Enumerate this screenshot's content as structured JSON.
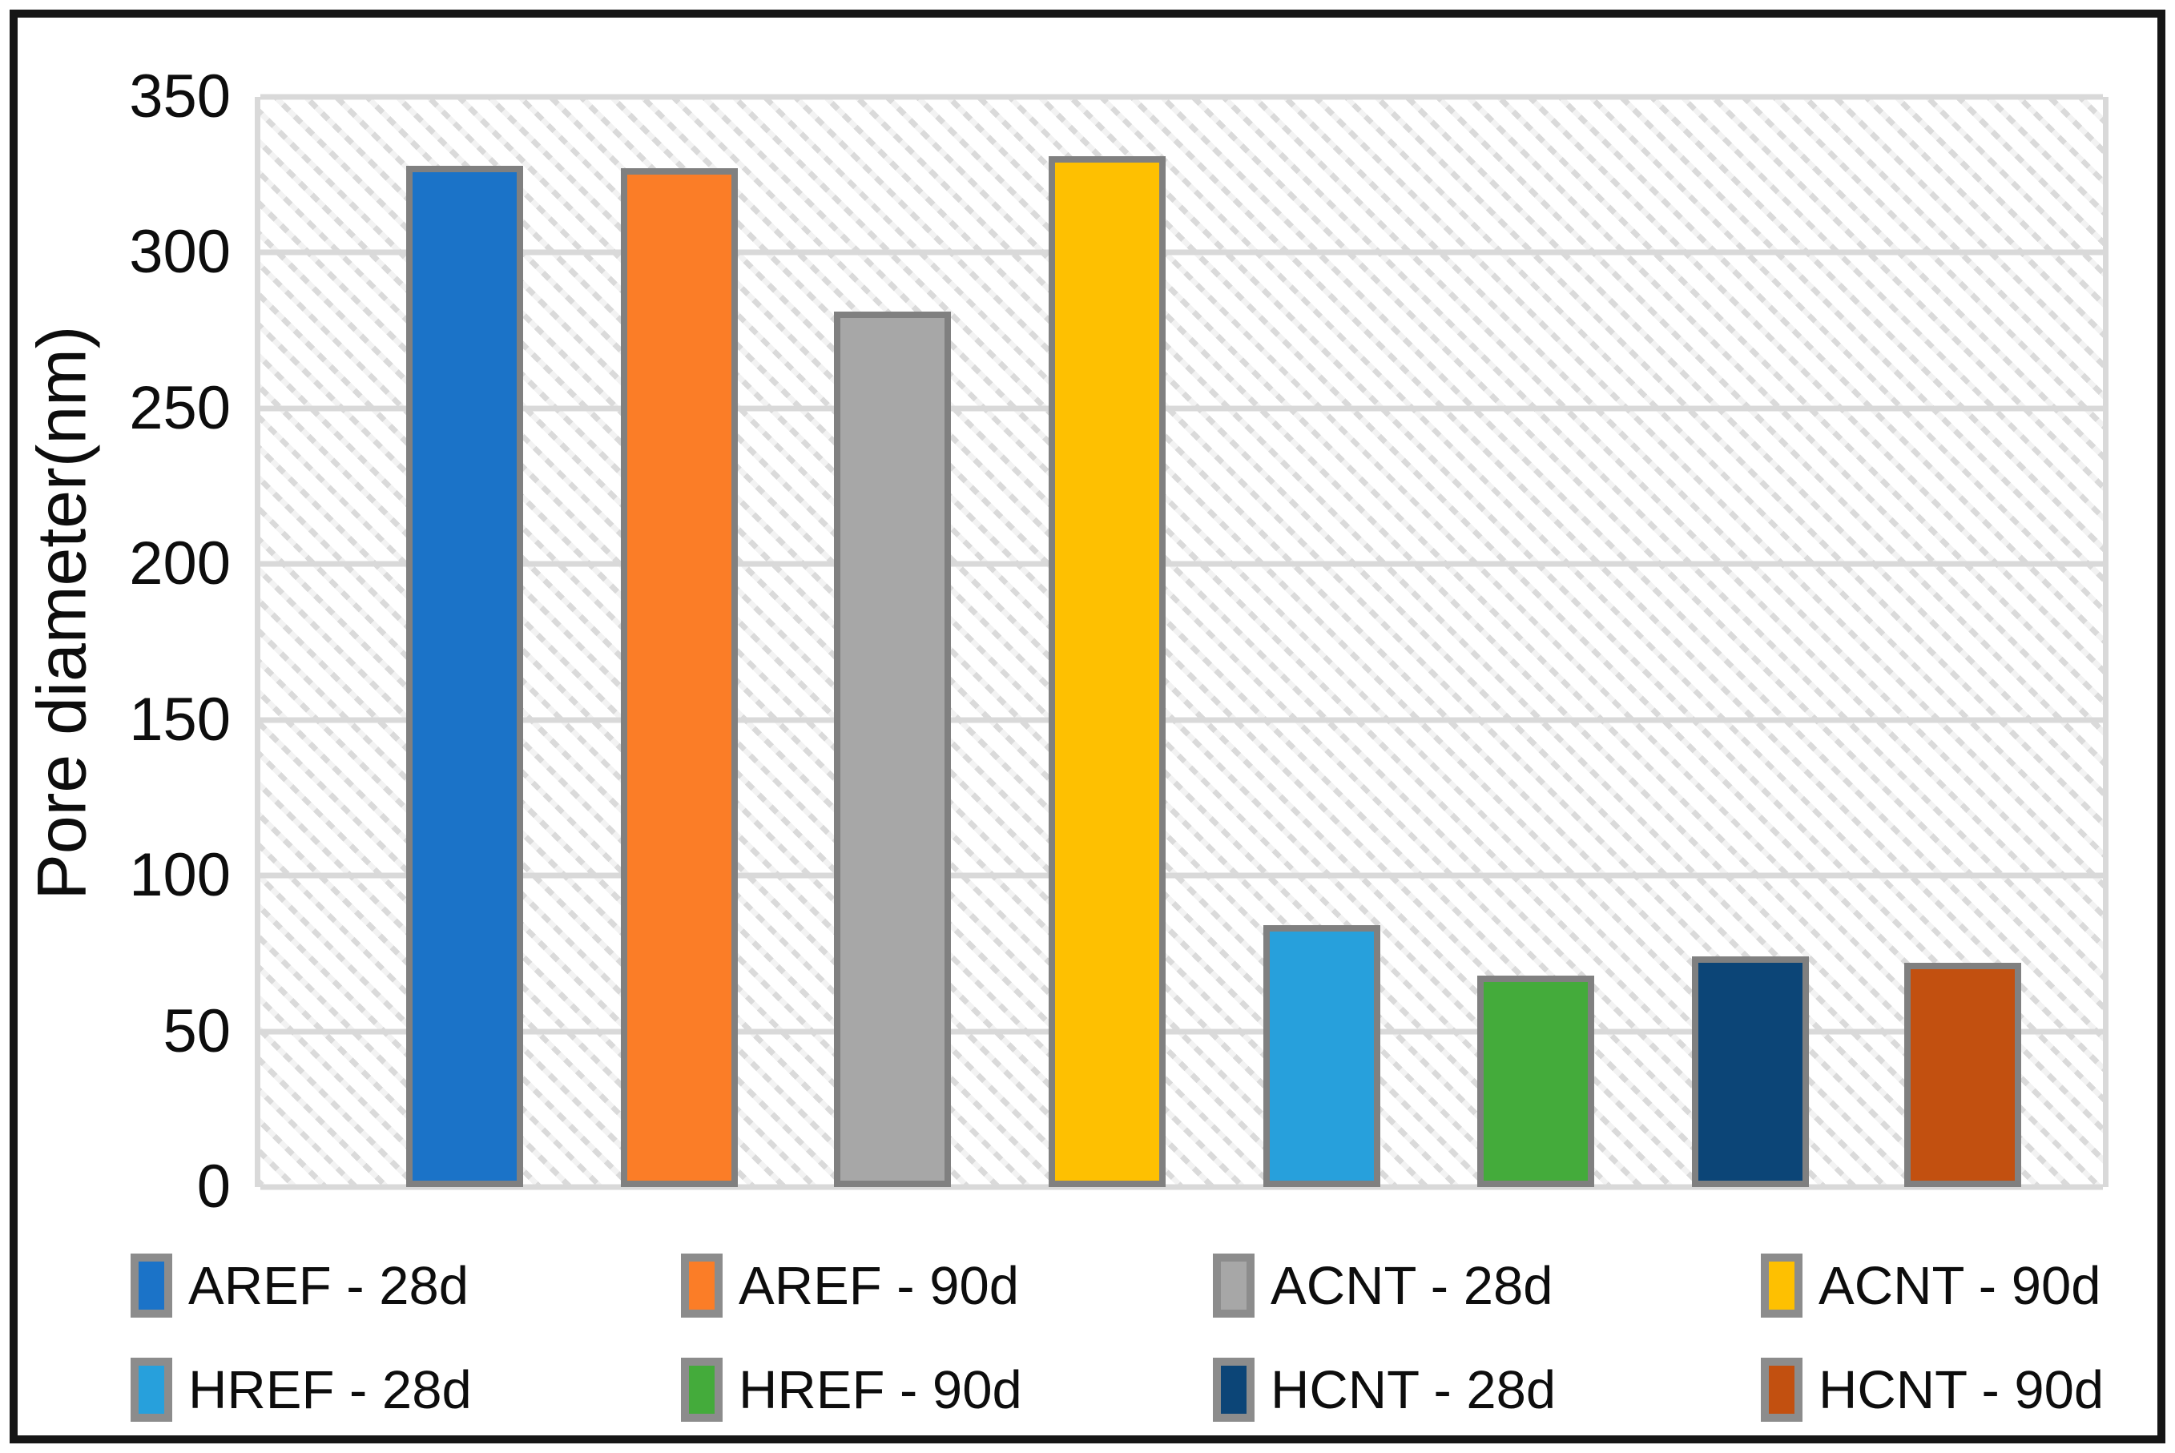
{
  "figure": {
    "y_axis_title": "Pore diameter(nm)",
    "frame_color": "#161616",
    "gridline_color": "#d9d9d9",
    "bar_outline_color": "#808080",
    "plot_background": "white with light-gray diagonal hatch"
  },
  "y_ticks": [
    "350",
    "300",
    "250",
    "200",
    "150",
    "100",
    "50",
    "0"
  ],
  "chart_data": {
    "type": "bar",
    "title": "",
    "xlabel": "",
    "ylabel": "Pore diameter(nm)",
    "ylim": [
      0,
      350
    ],
    "ytick_step": 50,
    "grid": "horizontal",
    "legend_position": "bottom",
    "categories": [
      "AREF - 28d",
      "AREF - 90d",
      "ACNT - 28d",
      "ACNT - 90d",
      "HREF - 28d",
      "HREF - 90d",
      "HCNT - 28d",
      "HCNT - 90d"
    ],
    "series": [
      {
        "name": "AREF - 28d",
        "value": 328,
        "color": "#1b73c8"
      },
      {
        "name": "AREF - 90d",
        "value": 327,
        "color": "#fb7d27"
      },
      {
        "name": "ACNT - 28d",
        "value": 281,
        "color": "#a7a7a7"
      },
      {
        "name": "ACNT - 90d",
        "value": 331,
        "color": "#fec001"
      },
      {
        "name": "HREF - 28d",
        "value": 84,
        "color": "#27a0dc"
      },
      {
        "name": "HREF - 90d",
        "value": 68,
        "color": "#44ab3b"
      },
      {
        "name": "HCNT - 28d",
        "value": 74,
        "color": "#0c4577"
      },
      {
        "name": "HCNT - 90d",
        "value": 72,
        "color": "#c25010"
      }
    ]
  }
}
